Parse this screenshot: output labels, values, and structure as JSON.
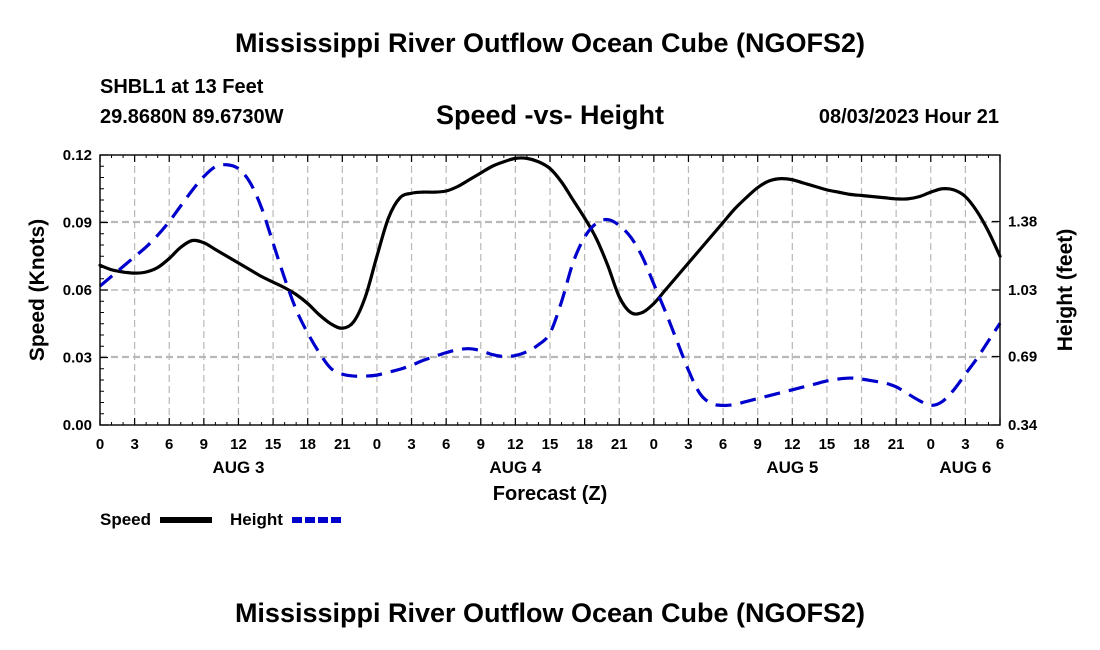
{
  "header": {
    "title": "Mississippi River Outflow Ocean Cube (NGOFS2)",
    "station": "SHBL1 at 13 Feet",
    "coordinates": "29.8680N  89.6730W",
    "subtitle": "Speed -vs- Height",
    "datetime": "08/03/2023 Hour 21"
  },
  "footer": {
    "title": "Mississippi River Outflow Ocean Cube (NGOFS2)"
  },
  "chart_data": {
    "type": "line",
    "title": "Speed -vs- Height",
    "xlabel": "Forecast (Z)",
    "ylabel": "Speed (Knots)",
    "y2label": "Height (feet)",
    "xlim": [
      0,
      78
    ],
    "ylim": [
      0,
      0.12
    ],
    "y2lim": [
      0.34,
      1.72
    ],
    "x_ticks": [
      0,
      3,
      6,
      9,
      12,
      15,
      18,
      21,
      24,
      27,
      30,
      33,
      36,
      39,
      42,
      45,
      48,
      51,
      54,
      57,
      60,
      63,
      66,
      69,
      72,
      75,
      78
    ],
    "x_tick_labels": [
      "0",
      "3",
      "6",
      "9",
      "12",
      "15",
      "18",
      "21",
      "0",
      "3",
      "6",
      "9",
      "12",
      "15",
      "18",
      "21",
      "0",
      "3",
      "6",
      "9",
      "12",
      "15",
      "18",
      "21",
      "0",
      "3",
      "6"
    ],
    "day_labels": [
      {
        "x": 12,
        "label": "AUG 3"
      },
      {
        "x": 36,
        "label": "AUG 4"
      },
      {
        "x": 60,
        "label": "AUG 5"
      },
      {
        "x": 75,
        "label": "AUG 6"
      }
    ],
    "y_ticks": [
      0,
      0.03,
      0.06,
      0.09,
      0.12
    ],
    "y_tick_labels": [
      "0.00",
      "0.03",
      "0.06",
      "0.09",
      "0.12"
    ],
    "y2_ticks": [
      0.34,
      0.69,
      1.03,
      1.38
    ],
    "y2_tick_labels": [
      "0.34",
      "0.69",
      "1.03",
      "1.38"
    ],
    "grid": true,
    "legend_position": "bottom-left",
    "series": [
      {
        "name": "Speed",
        "axis": "left",
        "color": "#000000",
        "dash": "solid",
        "x": [
          0,
          1,
          2,
          3,
          4,
          5,
          6,
          7,
          8,
          9,
          10,
          11,
          12,
          13,
          14,
          15,
          16,
          17,
          18,
          19,
          20,
          21,
          22,
          23,
          24,
          25,
          26,
          27,
          28,
          29,
          30,
          31,
          32,
          33,
          34,
          35,
          36,
          37,
          38,
          39,
          40,
          41,
          42,
          43,
          44,
          45,
          46,
          47,
          48,
          49,
          50,
          51,
          52,
          53,
          54,
          55,
          56,
          57,
          58,
          59,
          60,
          61,
          62,
          63,
          64,
          65,
          66,
          67,
          68,
          69,
          70,
          71,
          72,
          73,
          74,
          75,
          76,
          77,
          78
        ],
        "values": [
          0.071,
          0.069,
          0.068,
          0.0675,
          0.068,
          0.07,
          0.074,
          0.079,
          0.082,
          0.081,
          0.078,
          0.075,
          0.072,
          0.069,
          0.066,
          0.0635,
          0.061,
          0.058,
          0.054,
          0.049,
          0.045,
          0.043,
          0.046,
          0.057,
          0.075,
          0.092,
          0.101,
          0.103,
          0.1035,
          0.1035,
          0.104,
          0.106,
          0.109,
          0.112,
          0.115,
          0.117,
          0.1185,
          0.1185,
          0.117,
          0.114,
          0.108,
          0.1,
          0.092,
          0.083,
          0.071,
          0.057,
          0.05,
          0.05,
          0.054,
          0.06,
          0.066,
          0.072,
          0.078,
          0.084,
          0.09,
          0.096,
          0.101,
          0.1055,
          0.1085,
          0.1095,
          0.109,
          0.1075,
          0.106,
          0.1045,
          0.1035,
          0.1025,
          0.102,
          0.1015,
          0.101,
          0.1005,
          0.1005,
          0.1015,
          0.1035,
          0.105,
          0.1045,
          0.1015,
          0.095,
          0.086,
          0.075
        ]
      },
      {
        "name": "Height",
        "axis": "right",
        "color": "#0000cc",
        "dash": "dashed",
        "x": [
          0,
          1,
          2,
          3,
          4,
          5,
          6,
          7,
          8,
          9,
          10,
          11,
          12,
          13,
          14,
          15,
          16,
          17,
          18,
          19,
          20,
          21,
          22,
          23,
          24,
          25,
          26,
          27,
          28,
          29,
          30,
          31,
          32,
          33,
          34,
          35,
          36,
          37,
          38,
          39,
          40,
          41,
          42,
          43,
          44,
          45,
          46,
          47,
          48,
          49,
          50,
          51,
          52,
          53,
          54,
          55,
          56,
          57,
          58,
          59,
          60,
          61,
          62,
          63,
          64,
          65,
          66,
          67,
          68,
          69,
          70,
          71,
          72,
          73,
          74,
          75,
          76,
          77,
          78
        ],
        "values": [
          1.05,
          1.1,
          1.15,
          1.2,
          1.25,
          1.31,
          1.38,
          1.46,
          1.54,
          1.61,
          1.66,
          1.67,
          1.65,
          1.58,
          1.45,
          1.27,
          1.09,
          0.93,
          0.81,
          0.71,
          0.63,
          0.6,
          0.59,
          0.59,
          0.595,
          0.61,
          0.625,
          0.645,
          0.67,
          0.69,
          0.71,
          0.725,
          0.73,
          0.72,
          0.7,
          0.69,
          0.695,
          0.715,
          0.75,
          0.81,
          0.97,
          1.17,
          1.3,
          1.37,
          1.39,
          1.36,
          1.3,
          1.2,
          1.06,
          0.92,
          0.77,
          0.62,
          0.5,
          0.45,
          0.44,
          0.445,
          0.46,
          0.475,
          0.49,
          0.505,
          0.52,
          0.535,
          0.55,
          0.565,
          0.575,
          0.58,
          0.575,
          0.565,
          0.555,
          0.535,
          0.5,
          0.465,
          0.44,
          0.46,
          0.52,
          0.6,
          0.68,
          0.77,
          0.86
        ]
      }
    ]
  }
}
